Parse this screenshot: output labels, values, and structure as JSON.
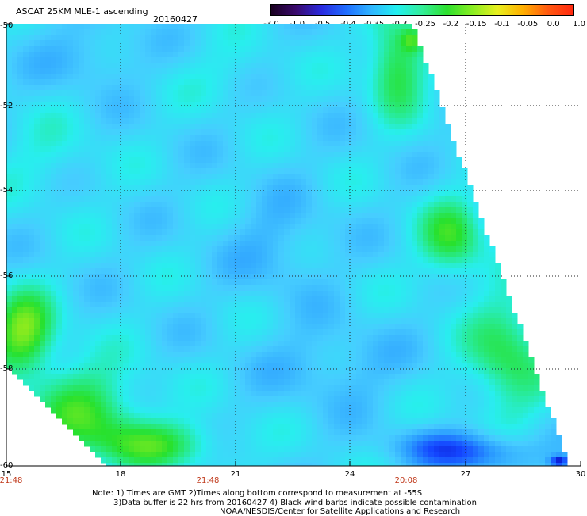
{
  "header": {
    "title": "ASCAT 25KM MLE-1 ascending",
    "date": "20160427"
  },
  "colorbar": {
    "labels": [
      "-3.0",
      "-1.0",
      "-0.5",
      "-0.4",
      "-0.35",
      "-0.3",
      "-0.25",
      "-0.2",
      "-0.15",
      "-0.1",
      "-0.05",
      "0.0",
      "1.0"
    ],
    "colors": [
      "#1a0020",
      "#3a0a6e",
      "#2a2ae0",
      "#1f6eff",
      "#2fb6ff",
      "#22f0f0",
      "#33ee99",
      "#2ee02e",
      "#88ee22",
      "#e8f020",
      "#ffb000",
      "#ff5a10",
      "#ff2a10"
    ]
  },
  "map": {
    "lat_labels": [
      "-50",
      "-52",
      "-54",
      "-56",
      "-58",
      "-60"
    ],
    "lon_labels": [
      "15",
      "18",
      "21",
      "24",
      "27",
      "30"
    ],
    "time_labels": [
      "21:48",
      "21:48",
      "20:08"
    ],
    "swath_note": "ascending pass swath, values colored by MLE-1"
  },
  "footer": {
    "line1": "Note: 1) Times are GMT 2)Times along bottom correspond to measurement at -55S",
    "line2": "3)Data buffer is 22 hrs from 20160427 4) Black wind barbs indicate possible contamination",
    "line3": "NOAA/NESDIS/Center for Satellite Applications and Research"
  }
}
